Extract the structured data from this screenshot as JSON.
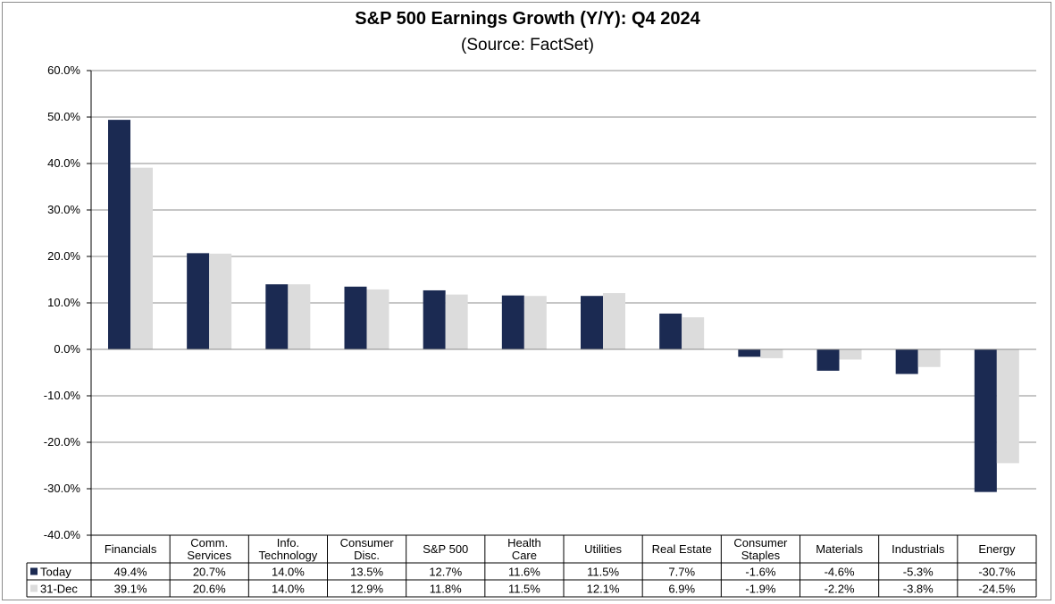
{
  "chart_data": {
    "type": "bar",
    "title": "S&P 500 Earnings Growth (Y/Y): Q4 2024",
    "subtitle": "(Source: FactSet)",
    "categories": [
      [
        "Financials"
      ],
      [
        "Comm.",
        "Services"
      ],
      [
        "Info.",
        "Technology"
      ],
      [
        "Consumer",
        "Disc."
      ],
      [
        "S&P 500"
      ],
      [
        "Health",
        "Care"
      ],
      [
        "Utilities"
      ],
      [
        "Real Estate"
      ],
      [
        "Consumer",
        "Staples"
      ],
      [
        "Materials"
      ],
      [
        "Industrials"
      ],
      [
        "Energy"
      ]
    ],
    "series": [
      {
        "name": "Today",
        "color": "#1b2a52",
        "values": [
          49.4,
          20.7,
          14.0,
          13.5,
          12.7,
          11.6,
          11.5,
          7.7,
          -1.6,
          -4.6,
          -5.3,
          -30.7
        ],
        "labels": [
          "49.4%",
          "20.7%",
          "14.0%",
          "13.5%",
          "12.7%",
          "11.6%",
          "11.5%",
          "7.7%",
          "-1.6%",
          "-4.6%",
          "-5.3%",
          "-30.7%"
        ]
      },
      {
        "name": "31-Dec",
        "color": "#dcdcdc",
        "values": [
          39.1,
          20.6,
          14.0,
          12.9,
          11.8,
          11.5,
          12.1,
          6.9,
          -1.9,
          -2.2,
          -3.8,
          -24.5
        ],
        "labels": [
          "39.1%",
          "20.6%",
          "14.0%",
          "12.9%",
          "11.8%",
          "11.5%",
          "12.1%",
          "6.9%",
          "-1.9%",
          "-2.2%",
          "-3.8%",
          "-24.5%"
        ]
      }
    ],
    "ylim": [
      -40,
      60
    ],
    "yticks": [
      60,
      50,
      40,
      30,
      20,
      10,
      0,
      -10,
      -20,
      -30,
      -40
    ],
    "ytick_labels": [
      "60.0%",
      "50.0%",
      "40.0%",
      "30.0%",
      "20.0%",
      "10.0%",
      "0.0%",
      "-10.0%",
      "-20.0%",
      "-30.0%",
      "-40.0%"
    ],
    "grid": true,
    "legend": "data-table"
  }
}
